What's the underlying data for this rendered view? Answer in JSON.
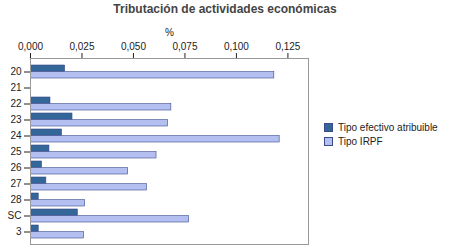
{
  "chart_data": {
    "type": "bar",
    "orientation": "horizontal",
    "title": "Tributación de actividades económicas",
    "xlabel": "%",
    "categories": [
      "20",
      "21",
      "22",
      "23",
      "24",
      "25",
      "26",
      "27",
      "28",
      "SC",
      "3"
    ],
    "series": [
      {
        "name": "Tipo efectivo atribuible",
        "color": "#336699",
        "values": [
          0.0168,
          0,
          0.0097,
          0.0204,
          0.0153,
          0.0092,
          0.0056,
          0.0077,
          0.004,
          0.023,
          0.004
        ]
      },
      {
        "name": "Tipo IRPF",
        "color": "#b3bff0",
        "values": [
          0.1184,
          0,
          0.0684,
          0.0668,
          0.121,
          0.0612,
          0.0474,
          0.0566,
          0.0265,
          0.077,
          0.026
        ]
      }
    ],
    "xlim": [
      0,
      0.135
    ],
    "xticks": [
      {
        "value": 0,
        "label": "0,000"
      },
      {
        "value": 0.025,
        "label": "0,025"
      },
      {
        "value": 0.05,
        "label": "0,050"
      },
      {
        "value": 0.075,
        "label": "0,075"
      },
      {
        "value": 0.1,
        "label": "0,100"
      },
      {
        "value": 0.125,
        "label": "0,125"
      }
    ],
    "grid": false,
    "legend": "right"
  }
}
